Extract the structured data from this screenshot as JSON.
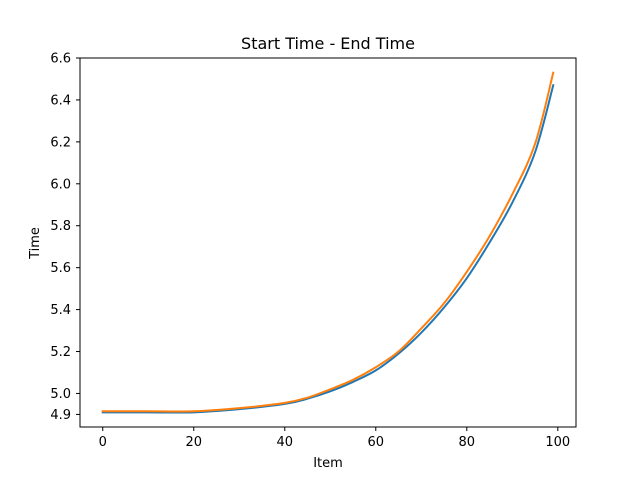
{
  "chart_data": {
    "type": "line",
    "title": "Start Time - End Time",
    "xlabel": "Item",
    "ylabel": "Time",
    "xlim": [
      -5,
      104
    ],
    "ylim": [
      4.84,
      6.6
    ],
    "xticks": [
      0,
      20,
      40,
      60,
      80,
      100
    ],
    "yticks": [
      4.9,
      5.0,
      5.2,
      5.4,
      5.6,
      5.8,
      6.0,
      6.2,
      6.4,
      6.6
    ],
    "ytick_labels": [
      "4.9",
      "5.0",
      "5.2",
      "5.4",
      "5.6",
      "5.8",
      "6.0",
      "6.2",
      "6.4",
      "6.6"
    ],
    "grid": false,
    "series": [
      {
        "color": "#1f77b4",
        "x": [
          0,
          10,
          20,
          30,
          40,
          45,
          50,
          55,
          60,
          65,
          70,
          75,
          80,
          85,
          90,
          95,
          99
        ],
        "y": [
          4.91,
          4.91,
          4.91,
          4.925,
          4.95,
          4.975,
          5.01,
          5.055,
          5.11,
          5.19,
          5.29,
          5.41,
          5.55,
          5.72,
          5.91,
          6.15,
          6.47
        ]
      },
      {
        "color": "#ff7f0e",
        "x": [
          0,
          10,
          20,
          30,
          40,
          45,
          50,
          55,
          60,
          65,
          70,
          75,
          80,
          85,
          90,
          95,
          99
        ],
        "y": [
          4.915,
          4.915,
          4.915,
          4.93,
          4.955,
          4.98,
          5.02,
          5.065,
          5.125,
          5.2,
          5.31,
          5.43,
          5.58,
          5.75,
          5.95,
          6.19,
          6.53
        ]
      }
    ]
  }
}
